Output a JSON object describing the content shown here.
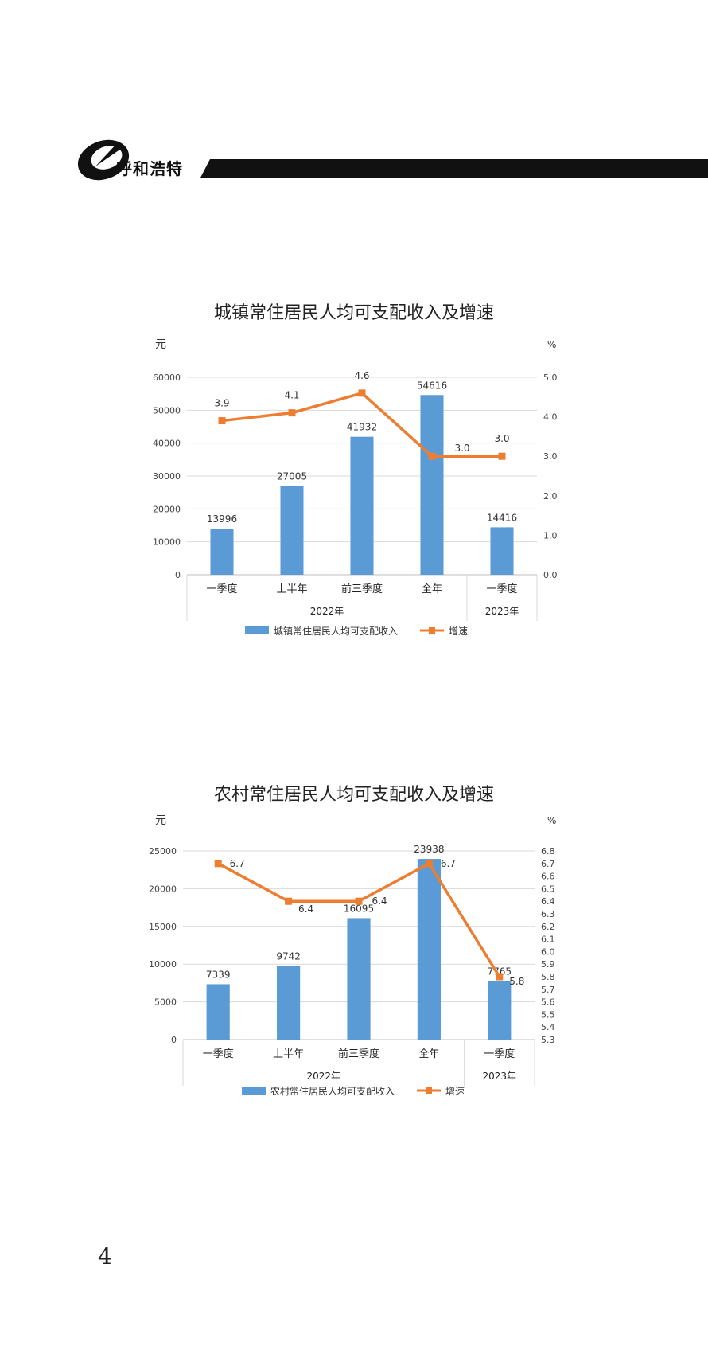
{
  "header": {
    "logo_text": "呼和浩特",
    "colors": {
      "bar": "#111111"
    },
    "icon": "hohhot-logo-icon"
  },
  "page_number": "4",
  "chart_data": [
    {
      "type": "bar",
      "title": "城镇常住居民人均可支配收入及增速",
      "ylabel": "元",
      "y2label": "%",
      "categories": [
        "一季度",
        "上半年",
        "前三季度",
        "全年",
        "一季度"
      ],
      "groups": [
        {
          "label": "2022年",
          "count": 4
        },
        {
          "label": "2023年",
          "count": 1
        }
      ],
      "ylim": [
        0,
        60000
      ],
      "yticks": [
        0,
        10000,
        20000,
        30000,
        40000,
        50000,
        60000
      ],
      "y2lim": [
        0,
        5
      ],
      "y2ticks": [
        "0.0",
        "1.0",
        "2.0",
        "3.0",
        "4.0",
        "5.0"
      ],
      "series": [
        {
          "name": "城镇常住居民人均可支配收入",
          "type": "bar",
          "values": [
            13996,
            27005,
            41932,
            54616,
            14416
          ],
          "color": "#5b9bd5"
        },
        {
          "name": "增速",
          "type": "line",
          "axis": "right",
          "values": [
            3.9,
            4.1,
            4.6,
            3.0,
            3.0
          ],
          "labels": [
            "3.9",
            "4.1",
            "4.6",
            "3.0",
            "3.0"
          ],
          "color": "#ed7d31"
        }
      ],
      "grid": true,
      "legend": "bottom"
    },
    {
      "type": "bar",
      "title": "农村常住居民人均可支配收入及增速",
      "ylabel": "元",
      "y2label": "%",
      "categories": [
        "一季度",
        "上半年",
        "前三季度",
        "全年",
        "一季度"
      ],
      "groups": [
        {
          "label": "2022年",
          "count": 4
        },
        {
          "label": "2023年",
          "count": 1
        }
      ],
      "ylim": [
        0,
        25000
      ],
      "yticks": [
        0,
        5000,
        10000,
        15000,
        20000,
        25000
      ],
      "y2lim": [
        5.3,
        6.8
      ],
      "y2ticks": [
        "5.3",
        "5.4",
        "5.5",
        "5.6",
        "5.7",
        "5.8",
        "5.9",
        "6.0",
        "6.1",
        "6.2",
        "6.3",
        "6.4",
        "6.5",
        "6.6",
        "6.7",
        "6.8"
      ],
      "series": [
        {
          "name": "农村常住居民人均可支配收入",
          "type": "bar",
          "values": [
            7339,
            9742,
            16095,
            23938,
            7765
          ],
          "color": "#5b9bd5"
        },
        {
          "name": "增速",
          "type": "line",
          "axis": "right",
          "values": [
            6.7,
            6.4,
            6.4,
            6.7,
            5.8
          ],
          "labels": [
            "6.7",
            "6.4",
            "6.4",
            "6.7",
            "5.8"
          ],
          "color": "#ed7d31"
        }
      ],
      "grid": true,
      "legend": "bottom"
    }
  ]
}
